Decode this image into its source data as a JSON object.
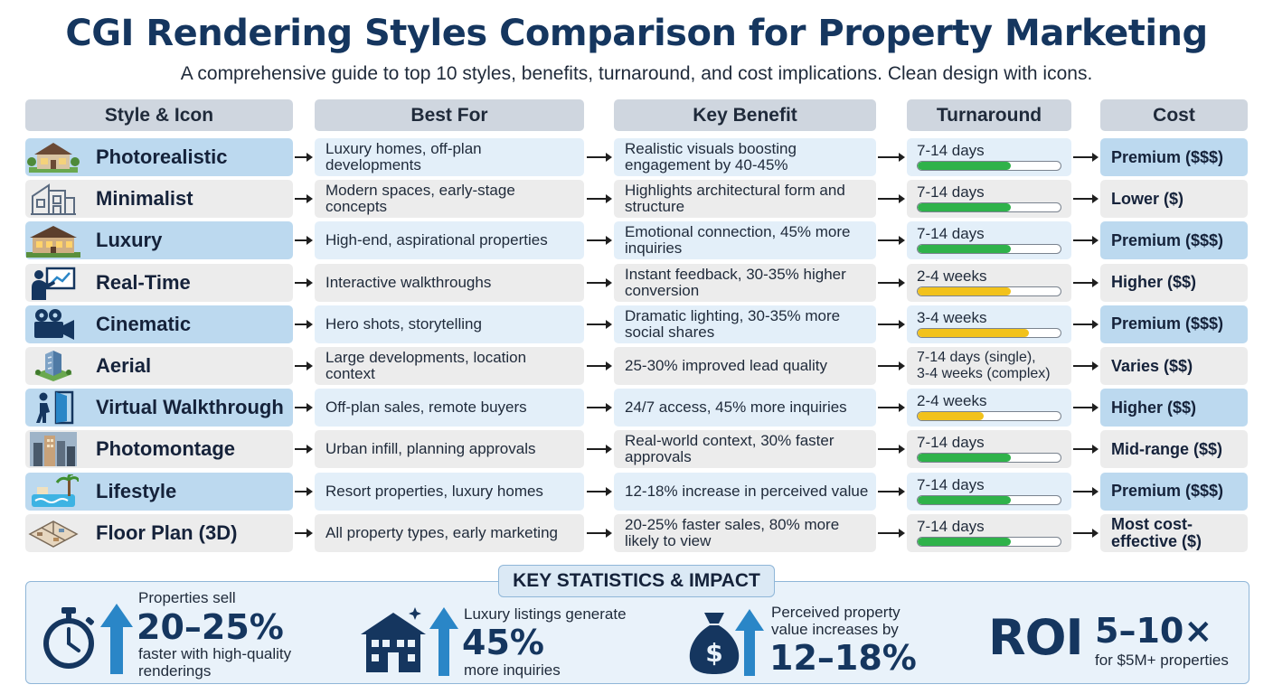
{
  "header": {
    "title": "CGI Rendering Styles Comparison for Property Marketing",
    "subtitle": "A comprehensive guide to top 10 styles, benefits, turnaround, and cost implications. Clean design with icons."
  },
  "columns": {
    "style": "Style & Icon",
    "best_for": "Best For",
    "benefit": "Key Benefit",
    "turnaround": "Turnaround",
    "cost": "Cost"
  },
  "colors": {
    "title": "#15365f",
    "bar_green": "#2fb24a",
    "bar_yellow": "#f2c21b",
    "row_blue": "#bcd9ef",
    "row_gray": "#ececec"
  },
  "rows": [
    {
      "style": "Photorealistic",
      "icon": "house-photo-icon",
      "best_for": "Luxury homes, off-plan developments",
      "benefit": "Realistic visuals boosting engagement by 40-45%",
      "turnaround": "7-14 days",
      "progress": 0.65,
      "bar_color": "green",
      "cost": "Premium ($$$)"
    },
    {
      "style": "Minimalist",
      "icon": "line-house-icon",
      "best_for": "Modern spaces, early-stage concepts",
      "benefit": "Highlights architectural form and structure",
      "turnaround": "7-14 days",
      "progress": 0.65,
      "bar_color": "green",
      "cost": "Lower ($)"
    },
    {
      "style": "Luxury",
      "icon": "mansion-icon",
      "best_for": "High-end, aspirational properties",
      "benefit": "Emotional connection, 45% more inquiries",
      "turnaround": "7-14 days",
      "progress": 0.65,
      "bar_color": "green",
      "cost": "Premium ($$$)"
    },
    {
      "style": "Real-Time",
      "icon": "presenter-icon",
      "best_for": "Interactive walkthroughs",
      "benefit": "Instant feedback, 30-35% higher conversion",
      "turnaround": "2-4 weeks",
      "progress": 0.65,
      "bar_color": "yellow",
      "cost": "Higher ($$)"
    },
    {
      "style": "Cinematic",
      "icon": "film-camera-icon",
      "best_for": "Hero shots, storytelling",
      "benefit": "Dramatic lighting, 30-35% more social shares",
      "turnaround": "3-4 weeks",
      "progress": 0.78,
      "bar_color": "yellow",
      "cost": "Premium ($$$)"
    },
    {
      "style": "Aerial",
      "icon": "isometric-tower-icon",
      "best_for": "Large developments, location context",
      "benefit": "25-30% improved lead quality",
      "turnaround": "7-14 days (single),",
      "turnaround_extra": "3-4 weeks (complex)",
      "progress": null,
      "bar_color": "",
      "cost": "Varies ($$)"
    },
    {
      "style": "Virtual Walkthrough",
      "icon": "person-door-icon",
      "best_for": "Off-plan sales, remote buyers",
      "benefit": "24/7 access, 45% more inquiries",
      "turnaround": "2-4 weeks",
      "progress": 0.46,
      "bar_color": "yellow",
      "cost": "Higher ($$)"
    },
    {
      "style": "Photomontage",
      "icon": "city-photo-icon",
      "best_for": "Urban infill, planning approvals",
      "benefit": "Real-world context, 30% faster approvals",
      "turnaround": "7-14 days",
      "progress": 0.65,
      "bar_color": "green",
      "cost": "Mid-range ($$)"
    },
    {
      "style": "Lifestyle",
      "icon": "pool-palm-icon",
      "best_for": "Resort properties, luxury homes",
      "benefit": "12-18% increase in perceived value",
      "turnaround": "7-14 days",
      "progress": 0.65,
      "bar_color": "green",
      "cost": "Premium ($$$)"
    },
    {
      "style": "Floor Plan (3D)",
      "icon": "floorplan-3d-icon",
      "best_for": "All property types, early marketing",
      "benefit": "20-25% faster sales, 80% more likely to view",
      "turnaround": "7-14 days",
      "progress": 0.65,
      "bar_color": "green",
      "cost": "Most cost-effective ($)"
    }
  ],
  "stats": {
    "title": "KEY STATISTICS & IMPACT",
    "s1": {
      "pre": "Properties sell",
      "big": "20–25%",
      "post1": "faster with high-quality",
      "post2": "renderings"
    },
    "s2": {
      "pre": "Luxury listings generate",
      "big": "45%",
      "post": "more inquiries"
    },
    "s3": {
      "pre1": "Perceived property",
      "pre2": "value increases by",
      "big": "12–18%"
    },
    "s4": {
      "roi": "ROI",
      "big": "5–10×",
      "post": "for $5M+ properties"
    }
  }
}
